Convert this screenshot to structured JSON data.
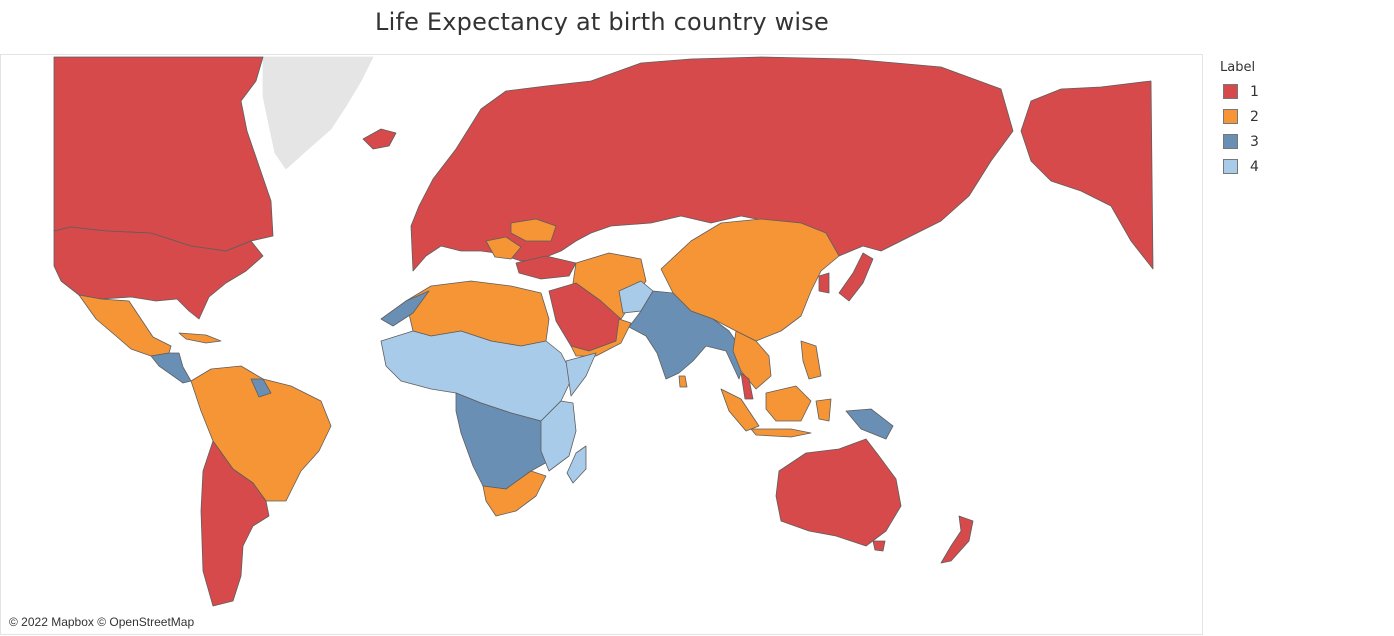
{
  "title": "Life Expectancy at birth country wise",
  "attribution": "© 2022 Mapbox © OpenStreetMap",
  "legend": {
    "title": "Label",
    "items": [
      {
        "label": "1",
        "color": "#d64a4b"
      },
      {
        "label": "2",
        "color": "#f69535"
      },
      {
        "label": "3",
        "color": "#6a8fb5"
      },
      {
        "label": "4",
        "color": "#a7cbe8"
      }
    ]
  },
  "colors": {
    "ocean": "#ffffff",
    "unlabeled_land": "#e5e5e5",
    "border": "#5e5e5e"
  }
}
